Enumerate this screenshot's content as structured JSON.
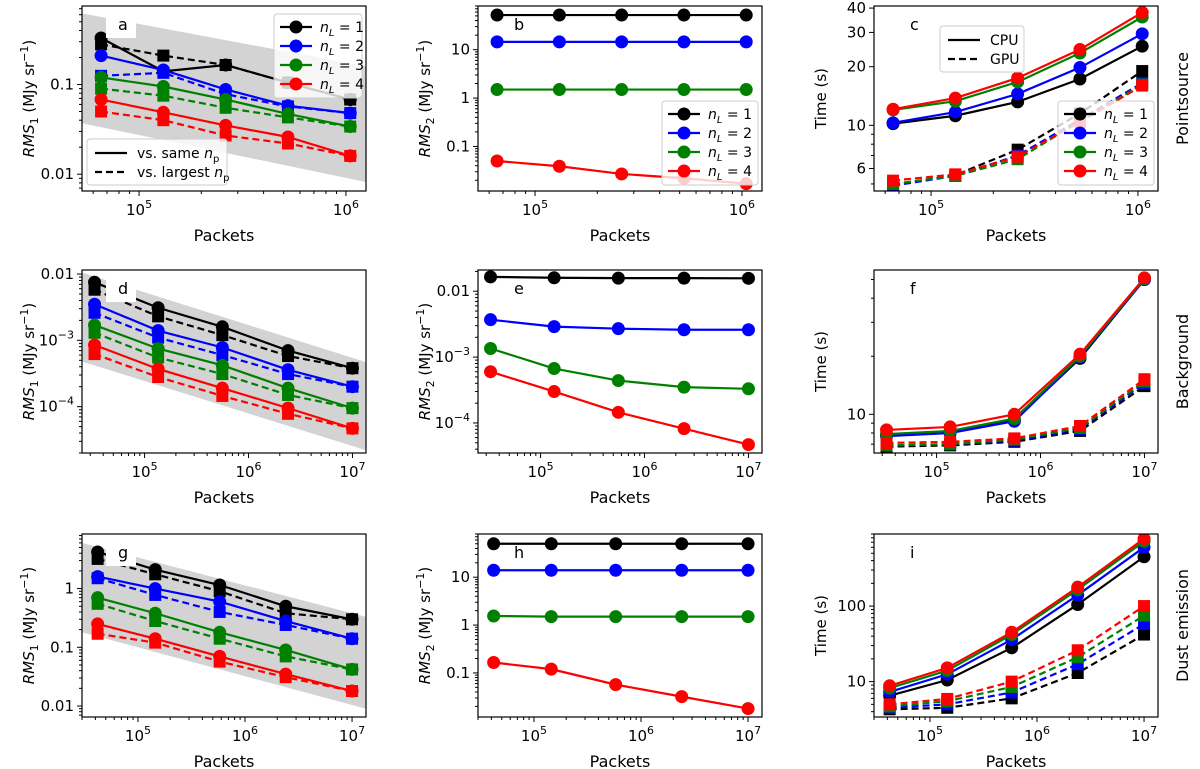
{
  "figure": {
    "row_labels": [
      "Pointsource",
      "Background",
      "Dust emission"
    ],
    "colors": {
      "nL1": "#000000",
      "nL2": "#0000ff",
      "nL3": "#008000",
      "nL4": "#ff0000",
      "band": "#d3d3d3"
    }
  },
  "chart_data": [
    {
      "id": "a",
      "panel_label": "a",
      "type": "line",
      "xlabel": "Packets",
      "ylabel": "RMS_1 (MJy sr^-1)",
      "xscale": "log",
      "yscale": "log",
      "xlim": [
        53000,
        1250000
      ],
      "ylim": [
        0.0065,
        0.75
      ],
      "xticks": [
        {
          "v": 100000,
          "label": "10^5"
        },
        {
          "v": 1000000,
          "label": "10^6"
        }
      ],
      "yticks": [
        {
          "v": 0.01,
          "label": "0.01"
        },
        {
          "v": 0.1,
          "label": "0.1"
        }
      ],
      "x": [
        65536,
        131072,
        262144,
        524288,
        1048576
      ],
      "band": {
        "x": [
          53000,
          1250000
        ],
        "upper": [
          0.62,
          0.16
        ],
        "lower": [
          0.037,
          0.0082
        ]
      },
      "series": [
        {
          "name": "n_L = 1",
          "color": "#000000",
          "same_np": [
            0.33,
            0.14,
            0.165,
            0.105,
            0.068
          ],
          "largest_np": [
            0.28,
            0.21,
            0.165,
            0.105,
            0.068
          ]
        },
        {
          "name": "n_L = 2",
          "color": "#0000ff",
          "same_np": [
            0.21,
            0.145,
            0.088,
            0.058,
            0.048
          ],
          "largest_np": [
            0.125,
            0.135,
            0.078,
            0.057,
            0.048
          ]
        },
        {
          "name": "n_L = 3",
          "color": "#008000",
          "same_np": [
            0.12,
            0.095,
            0.068,
            0.047,
            0.034
          ],
          "largest_np": [
            0.09,
            0.075,
            0.055,
            0.043,
            0.034
          ]
        },
        {
          "name": "n_L = 4",
          "color": "#ff0000",
          "same_np": [
            0.068,
            0.049,
            0.035,
            0.026,
            0.016
          ],
          "largest_np": [
            0.05,
            0.04,
            0.027,
            0.022,
            0.016
          ]
        }
      ],
      "legend_series": {
        "position": "upper right",
        "entries": [
          "n_L = 1",
          "n_L = 2",
          "n_L = 3",
          "n_L = 4"
        ]
      },
      "legend_style": {
        "position": "lower left",
        "entries": [
          "vs. same n_p",
          "vs. largest n_p"
        ]
      }
    },
    {
      "id": "b",
      "panel_label": "b",
      "type": "line",
      "xlabel": "Packets",
      "ylabel": "RMS_2 (MJy sr^-1)",
      "xscale": "log",
      "yscale": "log",
      "xlim": [
        53000,
        1250000
      ],
      "ylim": [
        0.012,
        80
      ],
      "xticks": [
        {
          "v": 100000,
          "label": "10^5"
        },
        {
          "v": 1000000,
          "label": "10^6"
        }
      ],
      "yticks": [
        {
          "v": 0.1,
          "label": "0.1"
        },
        {
          "v": 1,
          "label": "1"
        },
        {
          "v": 10,
          "label": "10"
        }
      ],
      "x": [
        65536,
        131072,
        262144,
        524288,
        1048576
      ],
      "series": [
        {
          "name": "n_L = 1",
          "color": "#000000",
          "values": [
            52,
            52,
            52,
            52,
            52
          ]
        },
        {
          "name": "n_L = 2",
          "color": "#0000ff",
          "values": [
            14.5,
            14.5,
            14.5,
            14.5,
            14.5
          ]
        },
        {
          "name": "n_L = 3",
          "color": "#008000",
          "values": [
            1.5,
            1.5,
            1.5,
            1.5,
            1.5
          ]
        },
        {
          "name": "n_L = 4",
          "color": "#ff0000",
          "values": [
            0.05,
            0.039,
            0.027,
            0.022,
            0.017
          ]
        }
      ],
      "legend_series": {
        "position": "lower right",
        "entries": [
          "n_L = 1",
          "n_L = 2",
          "n_L = 3",
          "n_L = 4"
        ]
      }
    },
    {
      "id": "c",
      "panel_label": "c",
      "type": "line",
      "xlabel": "Packets",
      "ylabel": "Time (s)",
      "xscale": "log",
      "yscale": "log",
      "xlim": [
        53000,
        1250000
      ],
      "ylim": [
        4.6,
        41
      ],
      "xticks": [
        {
          "v": 100000,
          "label": "10^5"
        },
        {
          "v": 1000000,
          "label": "10^6"
        }
      ],
      "yticks": [
        {
          "v": 6,
          "label": "6"
        },
        {
          "v": 10,
          "label": "10"
        },
        {
          "v": 20,
          "label": "20"
        },
        {
          "v": 30,
          "label": "30"
        },
        {
          "v": 40,
          "label": "40"
        }
      ],
      "x": [
        65536,
        131072,
        262144,
        524288,
        1048576
      ],
      "series": [
        {
          "name": "n_L = 1",
          "color": "#000000",
          "cpu": [
            10.2,
            11.2,
            13.2,
            17.3,
            25.5
          ],
          "gpu": [
            4.95,
            5.55,
            7.5,
            11.5,
            19.0
          ]
        },
        {
          "name": "n_L = 2",
          "color": "#0000ff",
          "cpu": [
            10.3,
            11.7,
            14.5,
            19.8,
            29.5
          ],
          "gpu": [
            4.9,
            5.5,
            7.0,
            10.7,
            16.5
          ]
        },
        {
          "name": "n_L = 3",
          "color": "#008000",
          "cpu": [
            12.0,
            13.3,
            16.7,
            23.5,
            36.0
          ],
          "gpu": [
            5.0,
            5.5,
            6.7,
            10.5,
            16.2
          ]
        },
        {
          "name": "n_L = 4",
          "color": "#ff0000",
          "cpu": [
            12.1,
            13.8,
            17.5,
            24.5,
            38.0
          ],
          "gpu": [
            5.2,
            5.6,
            6.9,
            10.4,
            16.0
          ]
        }
      ],
      "legend_style": {
        "position": "upper center",
        "entries": [
          "CPU",
          "GPU"
        ]
      },
      "legend_series": {
        "position": "lower right",
        "entries": [
          "n_L = 1",
          "n_L = 2",
          "n_L = 3",
          "n_L = 4"
        ]
      }
    },
    {
      "id": "d",
      "panel_label": "d",
      "type": "line",
      "xlabel": "Packets",
      "ylabel": "RMS_1 (MJy sr^-1)",
      "xscale": "log",
      "yscale": "log",
      "xlim": [
        25000,
        13500000
      ],
      "ylim": [
        2e-05,
        0.0115
      ],
      "xticks": [
        {
          "v": 100000,
          "label": "10^5"
        },
        {
          "v": 1000000,
          "label": "10^6"
        },
        {
          "v": 10000000,
          "label": "10^7"
        }
      ],
      "yticks": [
        {
          "v": 0.0001,
          "label": "10^-4"
        },
        {
          "v": 0.001,
          "label": "10^-3"
        },
        {
          "v": 0.01,
          "label": "0.01"
        }
      ],
      "x": [
        33000,
        135000,
        560000,
        2400000,
        10000000
      ],
      "band": {
        "x": [
          25000,
          13500000
        ],
        "upper": [
          0.0105,
          0.00047
        ],
        "lower": [
          0.00048,
          2.2e-05
        ]
      },
      "series": [
        {
          "name": "n_L = 1",
          "color": "#000000",
          "same_np": [
            0.0075,
            0.0031,
            0.0016,
            0.0007,
            0.00038
          ],
          "largest_np": [
            0.0058,
            0.0023,
            0.0012,
            0.00058,
            0.00038
          ]
        },
        {
          "name": "n_L = 2",
          "color": "#0000ff",
          "same_np": [
            0.0035,
            0.0014,
            0.00078,
            0.00036,
            0.0002
          ],
          "largest_np": [
            0.0026,
            0.0011,
            0.0006,
            0.00031,
            0.0002
          ]
        },
        {
          "name": "n_L = 3",
          "color": "#008000",
          "same_np": [
            0.0017,
            0.00075,
            0.00042,
            0.00019,
            9.5e-05
          ],
          "largest_np": [
            0.0013,
            0.00055,
            0.00031,
            0.00015,
            9.5e-05
          ]
        },
        {
          "name": "n_L = 4",
          "color": "#ff0000",
          "same_np": [
            0.00085,
            0.00037,
            0.00019,
            9.5e-05,
            4.7e-05
          ],
          "largest_np": [
            0.00062,
            0.00028,
            0.000145,
            7.8e-05,
            4.7e-05
          ]
        }
      ]
    },
    {
      "id": "e",
      "panel_label": "e",
      "type": "line",
      "xlabel": "Packets",
      "ylabel": "RMS_2 (MJy sr^-1)",
      "xscale": "log",
      "yscale": "log",
      "xlim": [
        25000,
        13500000
      ],
      "ylim": [
        3.5e-05,
        0.021
      ],
      "xticks": [
        {
          "v": 100000,
          "label": "10^5"
        },
        {
          "v": 1000000,
          "label": "10^6"
        },
        {
          "v": 10000000,
          "label": "10^7"
        }
      ],
      "yticks": [
        {
          "v": 0.0001,
          "label": "10^-4"
        },
        {
          "v": 0.001,
          "label": "10^-3"
        },
        {
          "v": 0.01,
          "label": "0.01"
        }
      ],
      "x": [
        33000,
        135000,
        560000,
        2400000,
        10000000
      ],
      "series": [
        {
          "name": "n_L = 1",
          "color": "#000000",
          "values": [
            0.0165,
            0.016,
            0.0158,
            0.0158,
            0.0157
          ]
        },
        {
          "name": "n_L = 2",
          "color": "#0000ff",
          "values": [
            0.0037,
            0.0029,
            0.0027,
            0.0026,
            0.0026
          ]
        },
        {
          "name": "n_L = 3",
          "color": "#008000",
          "values": [
            0.00135,
            0.00067,
            0.00044,
            0.00035,
            0.00033
          ]
        },
        {
          "name": "n_L = 4",
          "color": "#ff0000",
          "values": [
            0.0006,
            0.0003,
            0.000145,
            8.2e-05,
            4.7e-05
          ]
        }
      ]
    },
    {
      "id": "f",
      "panel_label": "f",
      "type": "line",
      "xlabel": "Packets",
      "ylabel": "Time (s)",
      "xscale": "log",
      "yscale": "log",
      "xlim": [
        25000,
        13500000
      ],
      "ylim": [
        6.3,
        56
      ],
      "xticks": [
        {
          "v": 100000,
          "label": "10^5"
        },
        {
          "v": 1000000,
          "label": "10^6"
        },
        {
          "v": 10000000,
          "label": "10^7"
        }
      ],
      "yticks": [
        {
          "v": 10,
          "label": "10"
        }
      ],
      "x": [
        33000,
        135000,
        560000,
        2400000,
        10000000
      ],
      "series": [
        {
          "name": "n_L = 1",
          "color": "#000000",
          "cpu": [
            7.8,
            8.1,
            9.3,
            19.5,
            50
          ],
          "gpu": [
            6.8,
            6.9,
            7.2,
            8.2,
            14.0
          ]
        },
        {
          "name": "n_L = 2",
          "color": "#0000ff",
          "cpu": [
            7.7,
            8.0,
            9.2,
            19.8,
            50
          ],
          "gpu": [
            6.9,
            7.0,
            7.3,
            8.4,
            14.5
          ]
        },
        {
          "name": "n_L = 3",
          "color": "#008000",
          "cpu": [
            7.9,
            8.2,
            9.5,
            20.0,
            50.5
          ],
          "gpu": [
            6.9,
            7.0,
            7.4,
            8.5,
            14.8
          ]
        },
        {
          "name": "n_L = 4",
          "color": "#ff0000",
          "cpu": [
            8.3,
            8.6,
            10.0,
            20.5,
            51
          ],
          "gpu": [
            7.1,
            7.2,
            7.5,
            8.7,
            15.2
          ]
        }
      ]
    },
    {
      "id": "g",
      "panel_label": "g",
      "type": "line",
      "xlabel": "Packets",
      "ylabel": "RMS_1 (MJy sr^-1)",
      "xscale": "log",
      "yscale": "log",
      "xlim": [
        30000,
        13500000
      ],
      "ylim": [
        0.0065,
        8.5
      ],
      "xticks": [
        {
          "v": 100000,
          "label": "10^5"
        },
        {
          "v": 1000000,
          "label": "10^6"
        },
        {
          "v": 10000000,
          "label": "10^7"
        }
      ],
      "yticks": [
        {
          "v": 0.01,
          "label": "0.01"
        },
        {
          "v": 0.1,
          "label": "0.1"
        },
        {
          "v": 1,
          "label": "1"
        }
      ],
      "x": [
        42000,
        145000,
        580000,
        2400000,
        10000000
      ],
      "band": {
        "x": [
          30000,
          13500000
        ],
        "upper": [
          6.0,
          0.33
        ],
        "lower": [
          0.18,
          0.009
        ]
      },
      "series": [
        {
          "name": "n_L = 1",
          "color": "#000000",
          "same_np": [
            4.2,
            2.1,
            1.15,
            0.5,
            0.3
          ],
          "largest_np": [
            3.2,
            1.75,
            0.9,
            0.38,
            0.3
          ]
        },
        {
          "name": "n_L = 2",
          "color": "#0000ff",
          "same_np": [
            1.6,
            1.0,
            0.6,
            0.28,
            0.14
          ],
          "largest_np": [
            1.5,
            0.78,
            0.4,
            0.24,
            0.14
          ]
        },
        {
          "name": "n_L = 3",
          "color": "#008000",
          "same_np": [
            0.7,
            0.38,
            0.18,
            0.09,
            0.042
          ],
          "largest_np": [
            0.55,
            0.28,
            0.14,
            0.07,
            0.042
          ]
        },
        {
          "name": "n_L = 4",
          "color": "#ff0000",
          "same_np": [
            0.25,
            0.14,
            0.07,
            0.035,
            0.018
          ],
          "largest_np": [
            0.17,
            0.12,
            0.057,
            0.031,
            0.018
          ]
        }
      ]
    },
    {
      "id": "h",
      "panel_label": "h",
      "type": "line",
      "xlabel": "Packets",
      "ylabel": "RMS_2 (MJy sr^-1)",
      "xscale": "log",
      "yscale": "log",
      "xlim": [
        30000,
        13500000
      ],
      "ylim": [
        0.012,
        80
      ],
      "xticks": [
        {
          "v": 100000,
          "label": "10^5"
        },
        {
          "v": 1000000,
          "label": "10^6"
        },
        {
          "v": 10000000,
          "label": "10^7"
        }
      ],
      "yticks": [
        {
          "v": 0.1,
          "label": "0.1"
        },
        {
          "v": 1,
          "label": "1"
        },
        {
          "v": 10,
          "label": "10"
        }
      ],
      "x": [
        42000,
        145000,
        580000,
        2400000,
        10000000
      ],
      "series": [
        {
          "name": "n_L = 1",
          "color": "#000000",
          "values": [
            50,
            50,
            50,
            50,
            50
          ]
        },
        {
          "name": "n_L = 2",
          "color": "#0000ff",
          "values": [
            14,
            14,
            14,
            14,
            14
          ]
        },
        {
          "name": "n_L = 3",
          "color": "#008000",
          "values": [
            1.55,
            1.5,
            1.5,
            1.5,
            1.5
          ]
        },
        {
          "name": "n_L = 4",
          "color": "#ff0000",
          "values": [
            0.165,
            0.12,
            0.057,
            0.032,
            0.018
          ]
        }
      ]
    },
    {
      "id": "i",
      "panel_label": "i",
      "type": "line",
      "xlabel": "Packets",
      "ylabel": "Time (s)",
      "xscale": "log",
      "yscale": "log",
      "xlim": [
        30000,
        13500000
      ],
      "ylim": [
        3.4,
        900
      ],
      "xticks": [
        {
          "v": 100000,
          "label": "10^5"
        },
        {
          "v": 1000000,
          "label": "10^6"
        },
        {
          "v": 10000000,
          "label": "10^7"
        }
      ],
      "yticks": [
        {
          "v": 10,
          "label": "10"
        },
        {
          "v": 100,
          "label": "100"
        }
      ],
      "x": [
        42000,
        145000,
        580000,
        2400000,
        10000000
      ],
      "series": [
        {
          "name": "n_L = 1",
          "color": "#000000",
          "cpu": [
            6.5,
            10.5,
            28,
            105,
            450
          ],
          "gpu": [
            4.3,
            4.5,
            6.0,
            13,
            42
          ]
        },
        {
          "name": "n_L = 2",
          "color": "#0000ff",
          "cpu": [
            7.3,
            12.5,
            36,
            140,
            600
          ],
          "gpu": [
            4.5,
            5.0,
            7.2,
            17,
            58
          ]
        },
        {
          "name": "n_L = 3",
          "color": "#008000",
          "cpu": [
            8.2,
            14.0,
            42,
            165,
            720
          ],
          "gpu": [
            4.7,
            5.5,
            8.5,
            21,
            75
          ]
        },
        {
          "name": "n_L = 4",
          "color": "#ff0000",
          "cpu": [
            8.8,
            15.2,
            45,
            178,
            780
          ],
          "gpu": [
            5.0,
            5.9,
            10,
            26,
            100
          ]
        }
      ]
    }
  ]
}
